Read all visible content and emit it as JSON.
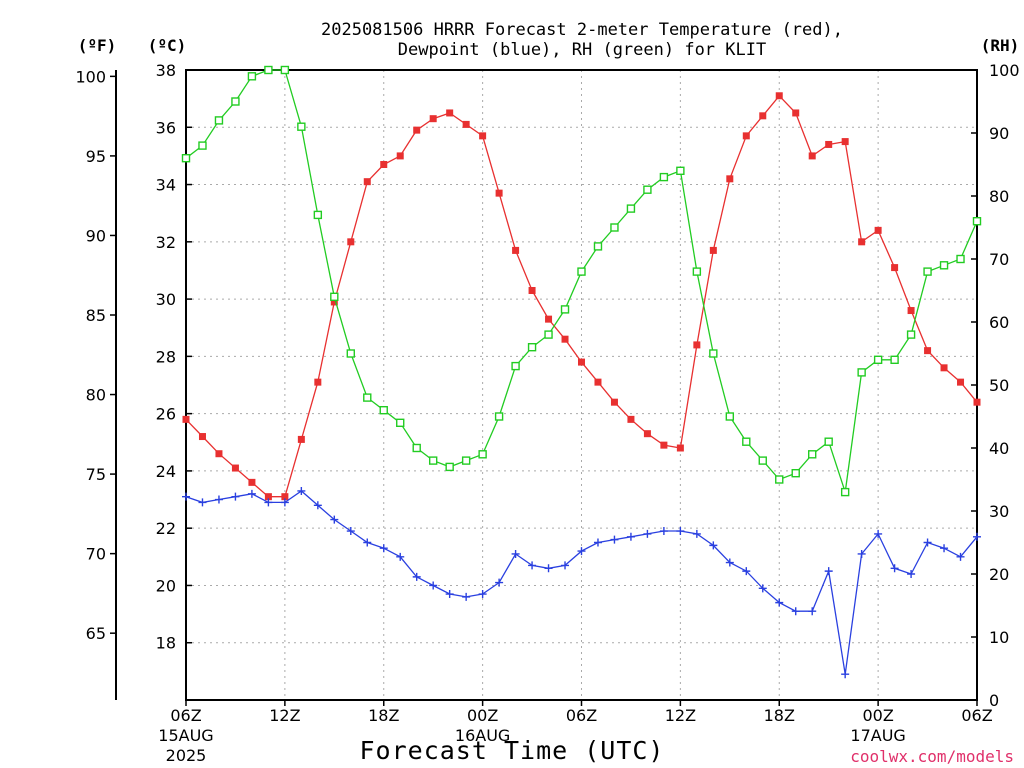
{
  "chart_data": {
    "type": "line",
    "title_lines": [
      "2025081506 HRRR Forecast 2-meter Temperature (red),",
      "Dewpoint (blue), RH (green) for KLIT"
    ],
    "xlabel": "Forecast Time (UTC)",
    "credit": "coolwx.com/models",
    "y_left_f": {
      "unit": "(ºF)",
      "ticks": [
        65,
        70,
        75,
        80,
        85,
        90,
        95,
        100
      ]
    },
    "y_left_c": {
      "unit": "(ºC)",
      "ticks": [
        18,
        20,
        22,
        24,
        26,
        28,
        30,
        32,
        34,
        36,
        38
      ],
      "range": [
        16,
        38
      ]
    },
    "y_right": {
      "unit": "(RH)",
      "ticks": [
        0,
        10,
        20,
        30,
        40,
        50,
        60,
        70,
        80,
        90,
        100
      ],
      "range": [
        0,
        100
      ]
    },
    "x_ticks": [
      {
        "hour": 0,
        "label": "06Z",
        "sub1": "15AUG",
        "sub2": "2025"
      },
      {
        "hour": 6,
        "label": "12Z"
      },
      {
        "hour": 12,
        "label": "18Z"
      },
      {
        "hour": 18,
        "label": "00Z",
        "sub1": "16AUG"
      },
      {
        "hour": 24,
        "label": "06Z"
      },
      {
        "hour": 30,
        "label": "12Z"
      },
      {
        "hour": 36,
        "label": "18Z"
      },
      {
        "hour": 42,
        "label": "00Z",
        "sub1": "17AUG"
      },
      {
        "hour": 48,
        "label": "06Z"
      }
    ],
    "x_range": [
      0,
      48
    ],
    "series": [
      {
        "name": "Temperature",
        "axis": "celsius",
        "color": "#e83030",
        "marker": "filled-square",
        "values": [
          25.8,
          25.2,
          24.6,
          24.1,
          23.6,
          23.1,
          23.1,
          25.1,
          27.1,
          29.9,
          32.0,
          34.1,
          34.7,
          35.0,
          35.9,
          36.3,
          36.5,
          36.1,
          35.7,
          33.7,
          31.7,
          30.3,
          29.3,
          28.6,
          27.8,
          27.1,
          26.4,
          25.8,
          25.3,
          24.9,
          24.8,
          28.4,
          31.7,
          34.2,
          35.7,
          36.4,
          37.1,
          36.5,
          35.0,
          35.4,
          35.5,
          32.0,
          32.4,
          31.1,
          29.6,
          28.2,
          27.6,
          27.1,
          26.4
        ]
      },
      {
        "name": "Dewpoint",
        "axis": "celsius",
        "color": "#2a40e0",
        "marker": "plus",
        "values": [
          23.1,
          22.9,
          23.0,
          23.1,
          23.2,
          22.9,
          22.9,
          23.3,
          22.8,
          22.3,
          21.9,
          21.5,
          21.3,
          21.0,
          20.3,
          20.0,
          19.7,
          19.6,
          19.7,
          20.1,
          21.1,
          20.7,
          20.6,
          20.7,
          21.2,
          21.5,
          21.6,
          21.7,
          21.8,
          21.9,
          21.9,
          21.8,
          21.4,
          20.8,
          20.5,
          19.9,
          19.4,
          19.1,
          19.1,
          20.5,
          16.9,
          21.1,
          21.8,
          20.6,
          20.4,
          21.5,
          21.3,
          21.0,
          21.7
        ]
      },
      {
        "name": "RH",
        "axis": "rh",
        "color": "#22cc22",
        "marker": "open-square",
        "values": [
          86,
          88,
          92,
          95,
          99,
          100,
          100,
          91,
          77,
          64,
          55,
          48,
          46,
          44,
          40,
          38,
          37,
          38,
          39,
          45,
          53,
          56,
          58,
          62,
          68,
          72,
          75,
          78,
          81,
          83,
          84,
          68,
          55,
          45,
          41,
          38,
          35,
          36,
          39,
          41,
          33,
          52,
          54,
          54,
          58,
          68,
          69,
          70,
          76
        ]
      }
    ]
  }
}
